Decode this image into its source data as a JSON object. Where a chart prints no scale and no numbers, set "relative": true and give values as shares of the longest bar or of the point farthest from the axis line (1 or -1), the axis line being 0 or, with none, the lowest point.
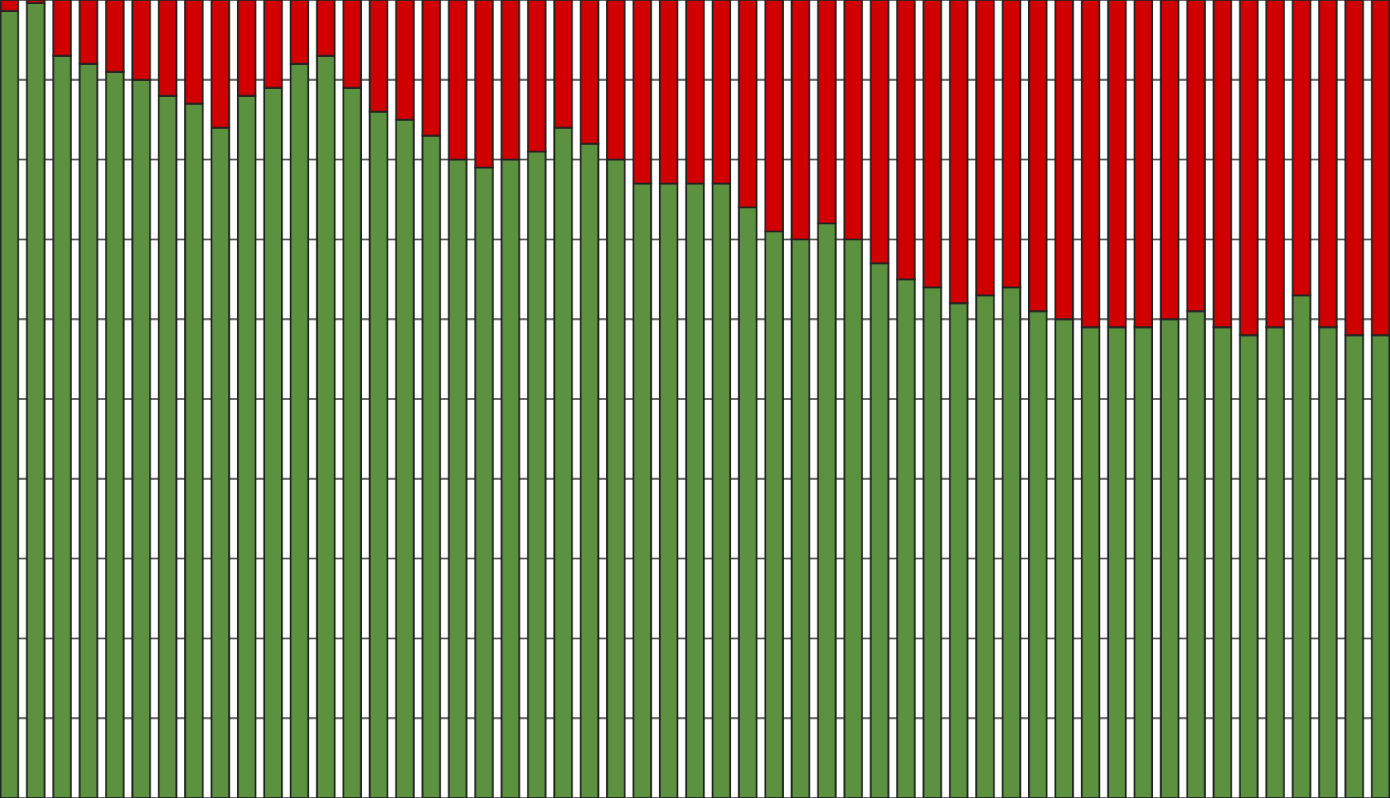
{
  "chart_data": {
    "type": "bar",
    "stacked": true,
    "relative": true,
    "grid": "y",
    "categories": [
      null,
      null,
      null,
      null,
      null,
      null,
      null,
      null,
      null,
      null,
      null,
      null,
      null,
      null,
      null,
      null,
      null,
      null,
      null,
      null,
      null,
      null,
      null,
      null,
      null,
      null,
      null,
      null,
      null,
      null,
      null,
      null,
      null,
      null,
      null,
      null,
      null,
      null,
      null,
      null,
      null,
      null,
      null,
      null,
      null,
      null,
      null,
      null,
      null,
      null,
      null,
      null,
      null
    ],
    "series": [
      {
        "color": "#5b913f",
        "values": [
          0.986,
          0.996,
          0.93,
          0.92,
          0.91,
          0.9,
          0.88,
          0.87,
          0.84,
          0.88,
          0.89,
          0.92,
          0.93,
          0.89,
          0.86,
          0.85,
          0.83,
          0.8,
          0.79,
          0.8,
          0.81,
          0.84,
          0.82,
          0.8,
          0.77,
          0.77,
          0.77,
          0.77,
          0.74,
          0.71,
          0.7,
          0.72,
          0.7,
          0.67,
          0.65,
          0.64,
          0.62,
          0.63,
          0.64,
          0.61,
          0.6,
          0.59,
          0.59,
          0.59,
          0.6,
          0.61,
          0.59,
          0.58,
          0.59,
          0.63,
          0.59,
          0.58,
          0.58
        ]
      },
      {
        "color": "#d10000",
        "values": [
          0.014,
          0.004,
          0.07,
          0.08,
          0.09,
          0.1,
          0.12,
          0.13,
          0.16,
          0.12,
          0.11,
          0.08,
          0.07,
          0.11,
          0.14,
          0.15,
          0.17,
          0.2,
          0.21,
          0.2,
          0.19,
          0.16,
          0.18,
          0.2,
          0.23,
          0.23,
          0.23,
          0.23,
          0.26,
          0.29,
          0.3,
          0.28,
          0.3,
          0.33,
          0.35,
          0.36,
          0.38,
          0.37,
          0.36,
          0.39,
          0.4,
          0.41,
          0.41,
          0.41,
          0.4,
          0.39,
          0.41,
          0.42,
          0.41,
          0.37,
          0.41,
          0.42,
          0.42
        ]
      }
    ]
  }
}
